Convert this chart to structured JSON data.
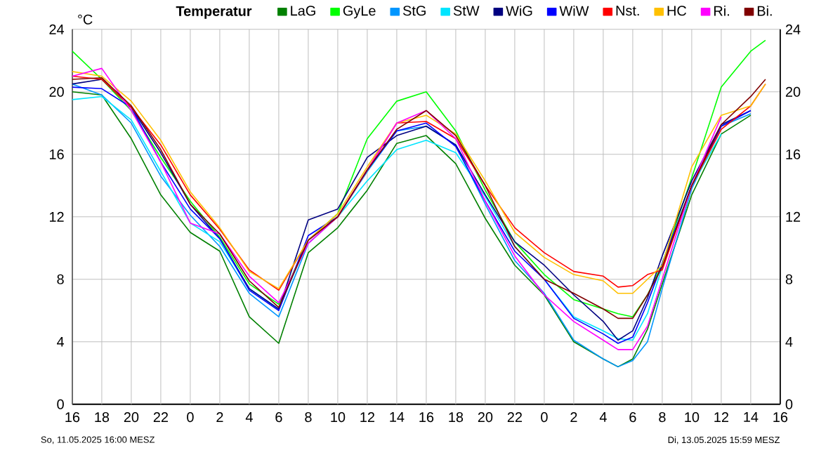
{
  "chart_data": {
    "type": "line",
    "title": "Temperatur",
    "ylabel": "°C",
    "annotations": [
      "So, 11.05.2025 16:00 MESZ",
      "Di, 13.05.2025 15:59 MESZ"
    ],
    "x": [
      "2025-05-11T16:00",
      "2025-05-11T18:00",
      "2025-05-11T20:00",
      "2025-05-11T22:00",
      "2025-05-12T00:00",
      "2025-05-12T02:00",
      "2025-05-12T04:00",
      "2025-05-12T06:00",
      "2025-05-12T08:00",
      "2025-05-12T10:00",
      "2025-05-12T12:00",
      "2025-05-12T14:00",
      "2025-05-12T16:00",
      "2025-05-12T18:00",
      "2025-05-12T20:00",
      "2025-05-12T22:00",
      "2025-05-13T00:00",
      "2025-05-13T02:00",
      "2025-05-13T04:00",
      "2025-05-13T05:00",
      "2025-05-13T06:00",
      "2025-05-13T07:00",
      "2025-05-13T08:00",
      "2025-05-13T10:00",
      "2025-05-13T12:00",
      "2025-05-13T14:00",
      "2025-05-13T15:00"
    ],
    "xlim": [
      "2025-05-11T16:00",
      "2025-05-13T16:00"
    ],
    "xticks": [
      {
        "value": "2025-05-11T16:00",
        "label": "16"
      },
      {
        "value": "2025-05-11T18:00",
        "label": "18"
      },
      {
        "value": "2025-05-11T20:00",
        "label": "20"
      },
      {
        "value": "2025-05-11T22:00",
        "label": "22"
      },
      {
        "value": "2025-05-12T00:00",
        "label": "0"
      },
      {
        "value": "2025-05-12T02:00",
        "label": "2"
      },
      {
        "value": "2025-05-12T04:00",
        "label": "4"
      },
      {
        "value": "2025-05-12T06:00",
        "label": "6"
      },
      {
        "value": "2025-05-12T08:00",
        "label": "8"
      },
      {
        "value": "2025-05-12T10:00",
        "label": "10"
      },
      {
        "value": "2025-05-12T12:00",
        "label": "12"
      },
      {
        "value": "2025-05-12T14:00",
        "label": "14"
      },
      {
        "value": "2025-05-12T16:00",
        "label": "16"
      },
      {
        "value": "2025-05-12T18:00",
        "label": "18"
      },
      {
        "value": "2025-05-12T20:00",
        "label": "20"
      },
      {
        "value": "2025-05-12T22:00",
        "label": "22"
      },
      {
        "value": "2025-05-13T00:00",
        "label": "0"
      },
      {
        "value": "2025-05-13T02:00",
        "label": "2"
      },
      {
        "value": "2025-05-13T04:00",
        "label": "4"
      },
      {
        "value": "2025-05-13T06:00",
        "label": "6"
      },
      {
        "value": "2025-05-13T08:00",
        "label": "8"
      },
      {
        "value": "2025-05-13T10:00",
        "label": "10"
      },
      {
        "value": "2025-05-13T12:00",
        "label": "12"
      },
      {
        "value": "2025-05-13T14:00",
        "label": "14"
      },
      {
        "value": "2025-05-13T16:00",
        "label": "16"
      }
    ],
    "ylim": [
      0,
      24
    ],
    "yticks": [
      0,
      4,
      8,
      12,
      16,
      20,
      24
    ],
    "y2lim": [
      0,
      24
    ],
    "y2ticks": [
      0,
      4,
      8,
      12,
      16,
      20,
      24
    ],
    "grid": true,
    "legend": "top right",
    "marker": "none",
    "line_style": "solid",
    "series": [
      {
        "name": "LaG",
        "color": "#008000",
        "values": [
          20.0,
          19.8,
          17.0,
          13.4,
          11.0,
          9.8,
          5.6,
          3.9,
          9.7,
          11.3,
          13.7,
          16.7,
          17.2,
          15.4,
          11.9,
          8.9,
          7.0,
          4.0,
          2.9,
          2.4,
          2.9,
          4.8,
          7.7,
          13.4,
          17.3,
          18.5,
          null
        ]
      },
      {
        "name": "GyLe",
        "color": "#00ff00",
        "values": [
          22.6,
          20.8,
          18.8,
          15.8,
          13.0,
          10.7,
          7.7,
          6.4,
          10.5,
          12.2,
          17.0,
          19.4,
          20.0,
          17.5,
          13.7,
          10.4,
          8.3,
          6.7,
          6.1,
          5.8,
          5.6,
          7.0,
          9.0,
          14.5,
          20.3,
          22.6,
          23.3
        ]
      },
      {
        "name": "StG",
        "color": "#0096ff",
        "values": [
          20.5,
          19.8,
          18.0,
          14.6,
          12.1,
          10.1,
          7.1,
          5.6,
          10.3,
          12.0,
          14.9,
          17.5,
          17.8,
          16.6,
          12.8,
          9.2,
          7.1,
          4.1,
          2.9,
          2.4,
          2.8,
          4.0,
          7.4,
          13.8,
          17.8,
          18.6,
          null
        ]
      },
      {
        "name": "StW",
        "color": "#00e5ff",
        "values": [
          19.5,
          19.7,
          18.2,
          14.9,
          11.6,
          10.4,
          7.4,
          6.1,
          10.5,
          12.0,
          14.3,
          16.3,
          16.9,
          16.1,
          13.3,
          10.1,
          8.0,
          5.6,
          4.7,
          4.2,
          4.1,
          5.8,
          8.8,
          14.0,
          17.3,
          null,
          null
        ]
      },
      {
        "name": "WiG",
        "color": "#000080",
        "values": [
          20.5,
          20.8,
          19.0,
          16.1,
          12.8,
          10.6,
          7.4,
          6.1,
          11.8,
          12.5,
          15.8,
          17.2,
          17.8,
          16.6,
          13.4,
          10.4,
          8.9,
          7.0,
          5.3,
          4.1,
          4.7,
          6.8,
          9.5,
          14.3,
          17.9,
          18.8,
          null
        ]
      },
      {
        "name": "WiW",
        "color": "#0000ff",
        "values": [
          20.3,
          20.2,
          19.0,
          15.5,
          12.5,
          10.6,
          7.3,
          6.0,
          10.8,
          12.0,
          15.0,
          17.5,
          18.0,
          16.5,
          13.0,
          9.8,
          8.0,
          5.5,
          4.5,
          3.9,
          4.3,
          6.5,
          9.0,
          14.0,
          17.8,
          18.8,
          null
        ]
      },
      {
        "name": "Nst.",
        "color": "#ff0000",
        "values": [
          21.0,
          20.8,
          19.0,
          16.6,
          13.4,
          11.2,
          8.6,
          7.3,
          10.5,
          12.0,
          15.0,
          18.0,
          18.1,
          17.0,
          14.0,
          11.3,
          9.7,
          8.5,
          8.2,
          7.5,
          7.6,
          8.3,
          8.6,
          14.0,
          17.6,
          19.1,
          20.5
        ]
      },
      {
        "name": "HC",
        "color": "#ffc000",
        "values": [
          21.3,
          21.0,
          19.4,
          16.9,
          13.6,
          11.3,
          8.5,
          7.4,
          10.5,
          12.2,
          15.2,
          18.0,
          18.5,
          17.3,
          14.3,
          11.0,
          9.4,
          8.3,
          7.9,
          7.1,
          7.1,
          8.0,
          8.9,
          15.2,
          18.5,
          19.1,
          20.5
        ]
      },
      {
        "name": "Ri.",
        "color": "#ff00ff",
        "values": [
          21.0,
          21.5,
          18.8,
          15.5,
          11.6,
          10.9,
          8.2,
          6.5,
          10.3,
          12.0,
          15.0,
          18.0,
          18.8,
          17.0,
          13.0,
          9.5,
          7.0,
          5.3,
          4.1,
          3.5,
          3.5,
          5.0,
          8.0,
          14.0,
          18.4,
          null,
          null
        ]
      },
      {
        "name": "Bi.",
        "color": "#800000",
        "values": [
          20.8,
          20.9,
          19.1,
          16.3,
          12.8,
          10.9,
          7.9,
          6.2,
          10.5,
          12.0,
          15.0,
          17.6,
          18.8,
          17.2,
          14.0,
          10.1,
          8.0,
          7.1,
          6.1,
          5.5,
          5.5,
          7.0,
          8.8,
          14.0,
          17.9,
          19.7,
          20.8
        ]
      }
    ]
  }
}
